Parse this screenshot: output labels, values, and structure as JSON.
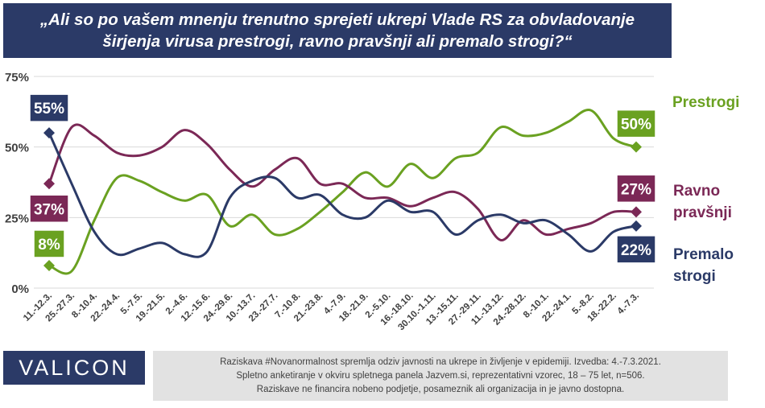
{
  "title_line1": "„Ali so po vašem mnenju trenutno sprejeti ukrepi Vlade RS za obvladovanje",
  "title_line2": "širjenja virusa prestrogi, ravno pravšnji ali premalo strogi?“",
  "brand": "VALICON",
  "note": [
    "Raziskava #Novanormalnost spremlja odziv javnosti na ukrepe in življenje v epidemiji.  Izvedba: 4.-7.3.2021.",
    "Spletno anketiranje v okviru spletnega panela Jazvem.si, reprezentativni vzorec, 18 – 75 let, n=506.",
    "Raziskave ne financira nobeno podjetje, posameznik ali organizacija in je javno dostopna."
  ],
  "legend": {
    "prestrogi": "Prestrogi",
    "ravno": [
      "Ravno",
      "pravšnji"
    ],
    "premalo": [
      "Premalo",
      "strogi"
    ]
  },
  "colors": {
    "prestrogi": "#6aa121",
    "ravno": "#7b2856",
    "premalo": "#2b3a67",
    "grid": "#d9d9d9"
  },
  "chart_data": {
    "type": "line",
    "ylim": [
      0,
      75
    ],
    "yticks": [
      "0%",
      "25%",
      "50%",
      "75%"
    ],
    "grid": true,
    "categories": [
      "11.-12.3.",
      "25.-27.3.",
      "8.-10.4.",
      "22.-24.4.",
      "5.-7.5.",
      "19.-21.5.",
      "2.-4.6.",
      "12.-15.6.",
      "24.-29.6.",
      "10.-13.7.",
      "23.-27.7.",
      "7.-10.8.",
      "21.-23.8.",
      "4.-7.9.",
      "18.-21.9.",
      "2.-5.10.",
      "16.-18.10.",
      "30.10.-1.11.",
      "13.-15.11.",
      "27.-29.11.",
      "11.-13.12.",
      "24.-28.12.",
      "8.-10.1.",
      "22.-24.1.",
      "5.-8.2.",
      "18.-22.2.",
      "4.-7.3."
    ],
    "series": [
      {
        "key": "prestrogi",
        "name": "Prestrogi",
        "values": [
          8,
          6,
          24,
          39,
          38,
          34,
          31,
          33,
          22,
          26,
          19,
          21,
          27,
          34,
          41,
          36,
          44,
          39,
          46,
          48,
          57,
          54,
          55,
          59,
          63,
          53,
          50
        ]
      },
      {
        "key": "ravno",
        "name": "Ravno pravšnji",
        "values": [
          37,
          57,
          54,
          48,
          47,
          50,
          56,
          51,
          42,
          36,
          42,
          46,
          37,
          37,
          32,
          32,
          29,
          32,
          34,
          28,
          17,
          24,
          19,
          21,
          23,
          27,
          27
        ]
      },
      {
        "key": "premalo",
        "name": "Premalo strogi",
        "values": [
          55,
          37,
          20,
          12,
          14,
          16,
          12,
          13,
          32,
          38,
          39,
          32,
          33,
          26,
          25,
          31,
          27,
          27,
          19,
          24,
          26,
          23,
          24,
          19,
          13,
          20,
          22
        ]
      }
    ],
    "labels": [
      {
        "series": "premalo",
        "index": 0,
        "text": "55%"
      },
      {
        "series": "ravno",
        "index": 0,
        "text": "37%"
      },
      {
        "series": "prestrogi",
        "index": 0,
        "text": "8%"
      },
      {
        "series": "prestrogi",
        "index": 26,
        "text": "50%"
      },
      {
        "series": "ravno",
        "index": 26,
        "text": "27%"
      },
      {
        "series": "premalo",
        "index": 26,
        "text": "22%"
      }
    ]
  }
}
